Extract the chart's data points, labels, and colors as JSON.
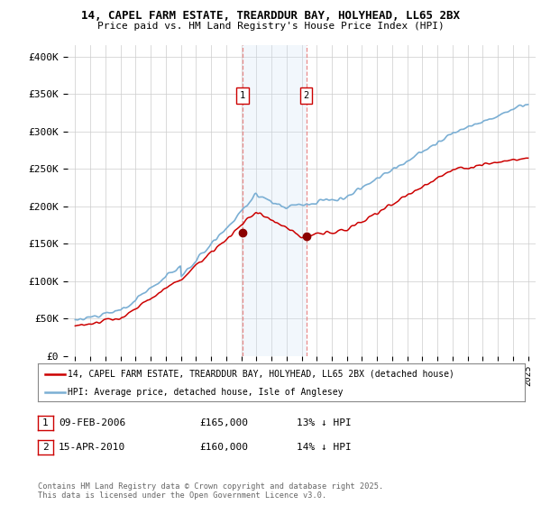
{
  "title_line1": "14, CAPEL FARM ESTATE, TREARDDUR BAY, HOLYHEAD, LL65 2BX",
  "title_line2": "Price paid vs. HM Land Registry's House Price Index (HPI)",
  "ylabel_ticks": [
    "£0",
    "£50K",
    "£100K",
    "£150K",
    "£200K",
    "£250K",
    "£300K",
    "£350K",
    "£400K"
  ],
  "ytick_values": [
    0,
    50000,
    100000,
    150000,
    200000,
    250000,
    300000,
    350000,
    400000
  ],
  "ylim": [
    0,
    415000
  ],
  "xlim_start": 1994.5,
  "xlim_end": 2025.5,
  "hpi_color": "#7bafd4",
  "price_color": "#cc0000",
  "sale1_x": 2006.1,
  "sale1_y": 165000,
  "sale2_x": 2010.3,
  "sale2_y": 160000,
  "vline_color": "#e88080",
  "shade_color": "#cce0f5",
  "legend_label1": "14, CAPEL FARM ESTATE, TREARDDUR BAY, HOLYHEAD, LL65 2BX (detached house)",
  "legend_label2": "HPI: Average price, detached house, Isle of Anglesey",
  "table_row1": [
    "1",
    "09-FEB-2006",
    "£165,000",
    "13% ↓ HPI"
  ],
  "table_row2": [
    "2",
    "15-APR-2010",
    "£160,000",
    "14% ↓ HPI"
  ],
  "footnote": "Contains HM Land Registry data © Crown copyright and database right 2025.\nThis data is licensed under the Open Government Licence v3.0.",
  "background_color": "#ffffff"
}
